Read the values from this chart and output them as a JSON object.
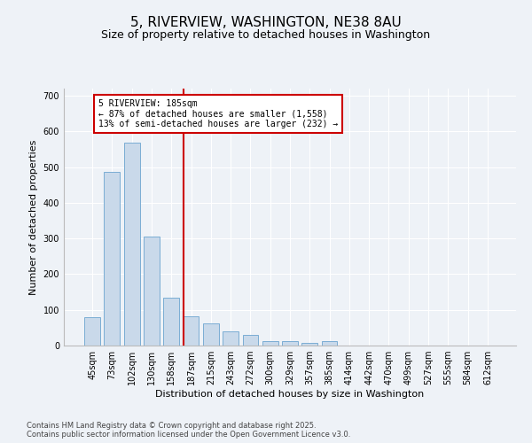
{
  "title": "5, RIVERVIEW, WASHINGTON, NE38 8AU",
  "subtitle": "Size of property relative to detached houses in Washington",
  "xlabel": "Distribution of detached houses by size in Washington",
  "ylabel": "Number of detached properties",
  "categories": [
    "45sqm",
    "73sqm",
    "102sqm",
    "130sqm",
    "158sqm",
    "187sqm",
    "215sqm",
    "243sqm",
    "272sqm",
    "300sqm",
    "329sqm",
    "357sqm",
    "385sqm",
    "414sqm",
    "442sqm",
    "470sqm",
    "499sqm",
    "527sqm",
    "555sqm",
    "584sqm",
    "612sqm"
  ],
  "values": [
    80,
    487,
    568,
    305,
    135,
    82,
    62,
    40,
    30,
    12,
    12,
    7,
    12,
    0,
    0,
    0,
    0,
    0,
    0,
    0,
    0
  ],
  "bar_color": "#c9d9ea",
  "bar_edge_color": "#7aadd4",
  "marker_index": 5,
  "marker_label": "5 RIVERVIEW: 185sqm",
  "annotation_line1": "← 87% of detached houses are smaller (1,558)",
  "annotation_line2": "13% of semi-detached houses are larger (232) →",
  "marker_color": "#cc0000",
  "ylim": [
    0,
    720
  ],
  "yticks": [
    0,
    100,
    200,
    300,
    400,
    500,
    600,
    700
  ],
  "footer_line1": "Contains HM Land Registry data © Crown copyright and database right 2025.",
  "footer_line2": "Contains public sector information licensed under the Open Government Licence v3.0.",
  "bg_color": "#eef2f7",
  "grid_color": "#ffffff",
  "title_fontsize": 11,
  "subtitle_fontsize": 9,
  "axis_label_fontsize": 8,
  "tick_fontsize": 7,
  "footer_fontsize": 6
}
